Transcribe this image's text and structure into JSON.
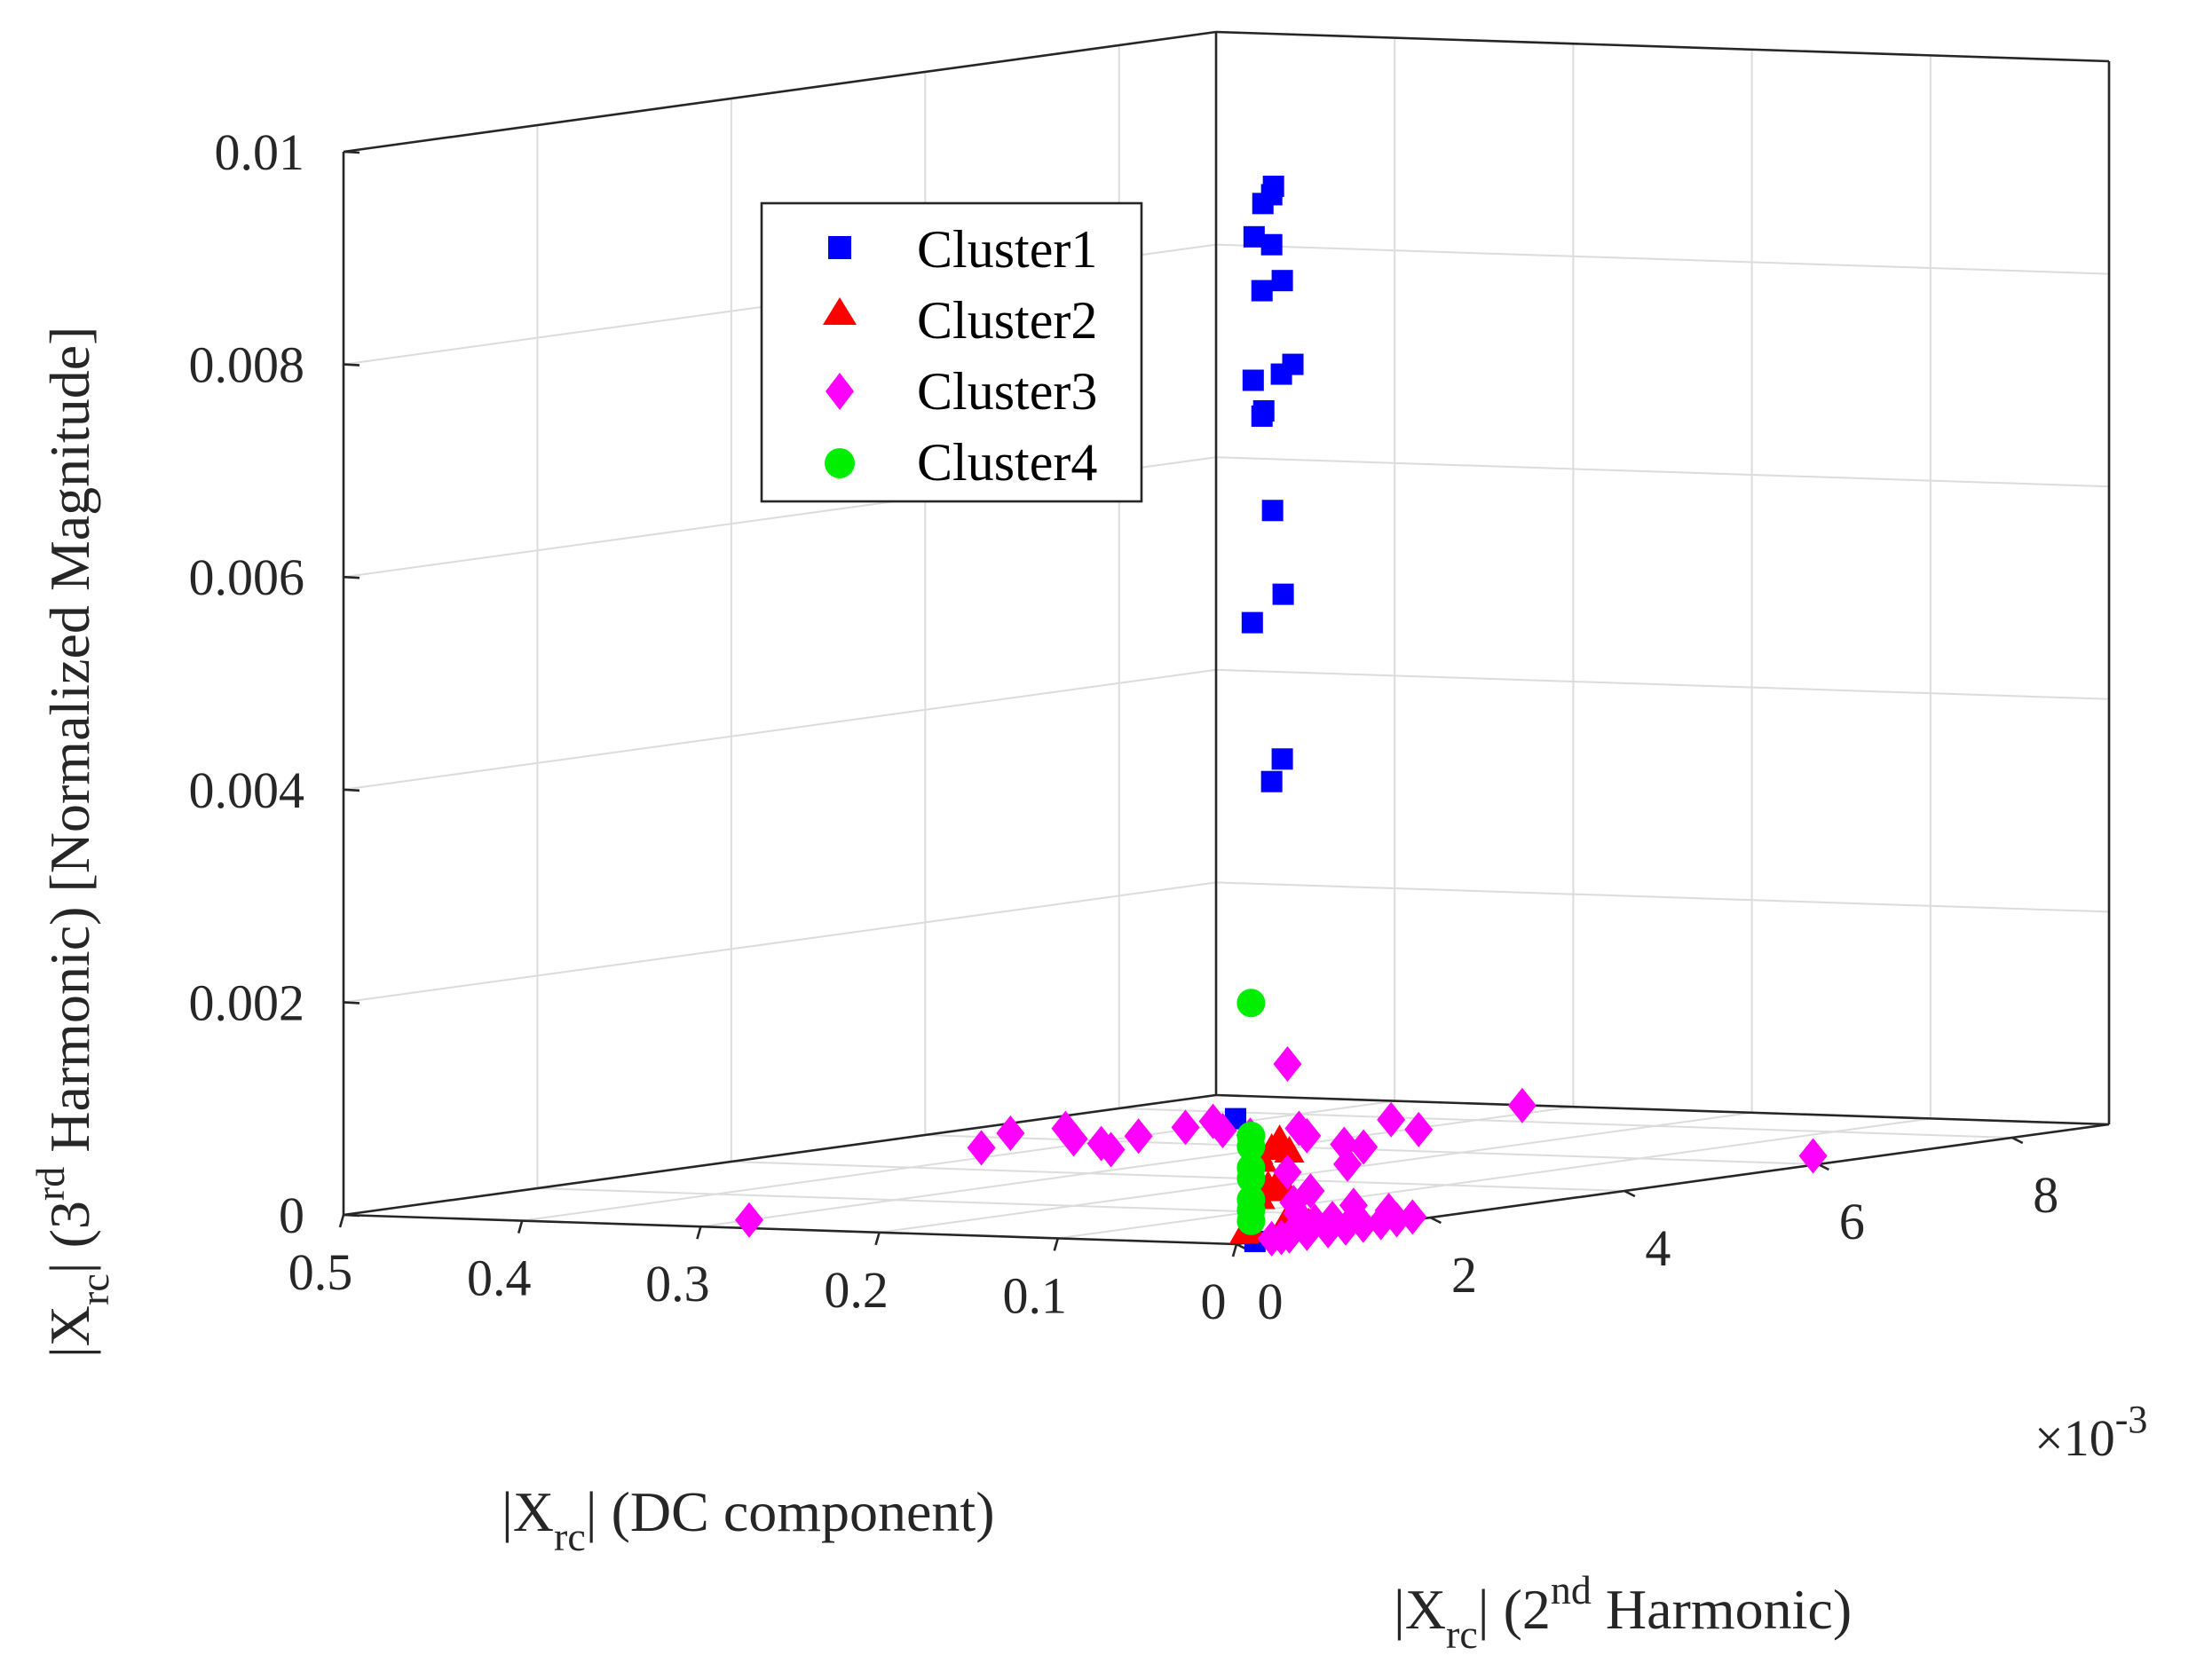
{
  "chart_data": {
    "type": "scatter3d",
    "title": "",
    "xlabel": {
      "pre": "|X",
      "sub": "rc",
      "post": "| (DC component)"
    },
    "ylabel": {
      "pre": "|X",
      "sub": "rc",
      "mid": "| (2",
      "sup": "nd",
      "post": " Harmonic)"
    },
    "zlabel": {
      "pre": "|X",
      "sub": "rc",
      "mid": "| (3",
      "sup": "rd",
      "post": " Harmonic) [Normalized Magnitude]"
    },
    "xlim": [
      0,
      0.5
    ],
    "ylim": [
      0,
      0.009
    ],
    "zlim": [
      0,
      0.01
    ],
    "x_ticks": [
      0,
      0.1,
      0.2,
      0.3,
      0.4,
      0.5
    ],
    "x_tick_labels": [
      "0",
      "0.1",
      "0.2",
      "0.3",
      "0.4",
      "0.5"
    ],
    "y_ticks": [
      0,
      0.002,
      0.004,
      0.006,
      0.008
    ],
    "y_tick_labels": [
      "0",
      "2",
      "4",
      "6",
      "8"
    ],
    "y_exponent": {
      "base": "×10",
      "exp": "-3"
    },
    "z_ticks": [
      0,
      0.002,
      0.004,
      0.006,
      0.008,
      0.01
    ],
    "z_tick_labels": [
      "0",
      "0.002",
      "0.004",
      "0.006",
      "0.008",
      "0.01"
    ],
    "grid": true,
    "legend_position": "top-left",
    "series": [
      {
        "name": "Cluster1",
        "marker": "square",
        "color": "#0000ff",
        "points": [
          [
            0.001,
            0.0004,
            0.0099
          ],
          [
            0.002,
            0.0004,
            0.00982
          ],
          [
            0.0015,
            0.0003,
            0.00975
          ],
          [
            0.001,
            0.0002,
            0.00945
          ],
          [
            0.002,
            0.0004,
            0.00935
          ],
          [
            0.0015,
            0.0005,
            0.009
          ],
          [
            0.002,
            0.0003,
            0.00893
          ],
          [
            0.001,
            0.0006,
            0.0082
          ],
          [
            0.002,
            0.0005,
            0.00812
          ],
          [
            0.0015,
            0.0002,
            0.0081
          ],
          [
            0.001,
            0.0003,
            0.0078
          ],
          [
            0.002,
            0.0003,
            0.00775
          ],
          [
            0.0015,
            0.0004,
            0.00685
          ],
          [
            0.001,
            0.0005,
            0.00605
          ],
          [
            0.002,
            0.0002,
            0.00582
          ],
          [
            0.0015,
            0.0005,
            0.0045
          ],
          [
            0.002,
            0.0004,
            0.0043
          ],
          [
            0.0005,
            0.0,
            0.00118
          ],
          [
            0.0005,
            0.0002,
            0.0
          ]
        ]
      },
      {
        "name": "Cluster2",
        "marker": "triangle",
        "color": "#ff0000",
        "points": [
          [
            0.003,
            0.0005,
            0.00092
          ],
          [
            0.002,
            0.0004,
            0.00085
          ],
          [
            0.004,
            0.0003,
            0.00082
          ],
          [
            0.003,
            0.0006,
            0.0008
          ],
          [
            0.002,
            0.0003,
            0.00075
          ],
          [
            0.003,
            0.0005,
            0.00055
          ],
          [
            0.004,
            0.0004,
            0.0005
          ],
          [
            0.002,
            0.0005,
            0.00045
          ],
          [
            0.003,
            0.0003,
            0.0004
          ],
          [
            0.003,
            0.0008,
            0.0001
          ],
          [
            0.003,
            0.0006,
            0.0002
          ],
          [
            0.002,
            0.0002,
            0.0001
          ],
          [
            0.001,
            0.0001,
            0.0001
          ]
        ]
      },
      {
        "name": "Cluster3",
        "marker": "diamond",
        "color": "#ff00ff",
        "points": [
          [
            0.3,
            0.0005,
            0.0
          ],
          [
            0.03,
            0.0065,
            0.0
          ],
          [
            0.17,
            0.0005,
            0.00075
          ],
          [
            0.17,
            0.0008,
            0.00085
          ],
          [
            0.15,
            0.001,
            0.00088
          ],
          [
            0.14,
            0.0009,
            0.0008
          ],
          [
            0.13,
            0.001,
            0.00075
          ],
          [
            0.13,
            0.0011,
            0.00068
          ],
          [
            0.12,
            0.0012,
            0.0008
          ],
          [
            0.11,
            0.0015,
            0.00085
          ],
          [
            0.1,
            0.0016,
            0.0009
          ],
          [
            0.1,
            0.0017,
            0.0008
          ],
          [
            0.09,
            0.0018,
            0.00075
          ],
          [
            0.08,
            0.002,
            0.0014
          ],
          [
            0.08,
            0.0022,
            0.0007
          ],
          [
            0.07,
            0.0024,
            0.0006
          ],
          [
            0.07,
            0.0026,
            0.00055
          ],
          [
            0.06,
            0.0027,
            0.0008
          ],
          [
            0.05,
            0.0028,
            0.0007
          ],
          [
            0.03,
            0.0035,
            0.00085
          ],
          [
            0.01,
            0.002,
            0.0
          ],
          [
            0.008,
            0.0018,
            0.0
          ],
          [
            0.006,
            0.0016,
            0.0
          ],
          [
            0.005,
            0.0014,
            0.0
          ],
          [
            0.004,
            0.0012,
            0.0
          ],
          [
            0.003,
            0.001,
            0.0
          ],
          [
            0.004,
            0.0008,
            0.0
          ],
          [
            0.005,
            0.0009,
            0.0001
          ],
          [
            0.006,
            0.0011,
            0.0001
          ],
          [
            0.003,
            0.0006,
            0.0
          ],
          [
            0.002,
            0.0005,
            0.0
          ],
          [
            0.004,
            0.0007,
            0.0002
          ],
          [
            0.005,
            0.0013,
            0.0002
          ],
          [
            0.002,
            0.0004,
            0.0
          ],
          [
            0.007,
            0.0017,
            0.0001
          ],
          [
            0.006,
            0.0007,
            0.0003
          ],
          [
            0.002,
            0.0008,
            0.0004
          ],
          [
            0.004,
            0.0006,
            0.0006
          ],
          [
            0.003,
            0.0012,
            0.0006
          ],
          [
            0.003,
            0.0007,
            0.001
          ]
        ]
      },
      {
        "name": "Cluster4",
        "marker": "circle",
        "color": "#00ee00",
        "points": [
          [
            0.0,
            0.00015,
            0.00225
          ],
          [
            0.0,
            0.00015,
            0.001
          ],
          [
            0.0,
            0.00015,
            0.0009
          ],
          [
            0.0,
            0.00015,
            0.0007
          ],
          [
            0.0,
            0.00015,
            0.0006
          ],
          [
            0.0,
            0.00015,
            0.0004
          ],
          [
            0.0,
            0.00015,
            0.0003
          ],
          [
            0.0,
            0.00015,
            0.0002
          ]
        ]
      }
    ]
  }
}
